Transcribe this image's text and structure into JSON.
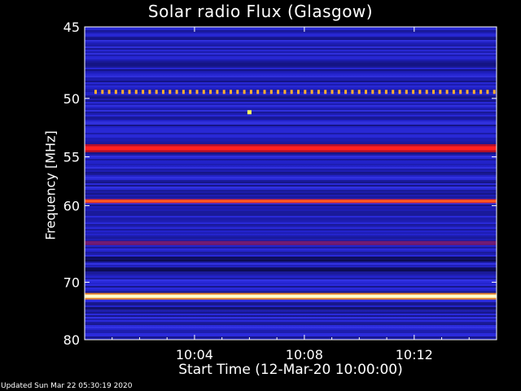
{
  "chart_data": {
    "type": "heatmap",
    "title": "Solar radio Flux (Glasgow)",
    "xlabel": "Start Time (12-Mar-20 10:00:00)",
    "ylabel": "Frequency [MHz]",
    "x_tick_labels": [
      "10:04",
      "10:08",
      "10:12"
    ],
    "x_ticks_minutes": [
      4,
      8,
      12
    ],
    "xlim_minutes": [
      0,
      15
    ],
    "y_ticks": [
      45,
      50,
      55,
      60,
      70,
      80
    ],
    "ylim": [
      45,
      80
    ],
    "y_scale": "reciprocal",
    "colormap": [
      "#000000",
      "#1a1aa6",
      "#3535e6",
      "#8a1a6a",
      "#ff1a1a",
      "#ffd040",
      "#ffffff"
    ],
    "bands": [
      {
        "freq_mhz": 49.5,
        "level": "dotted-yellow"
      },
      {
        "freq_mhz": 54.2,
        "level": "red"
      },
      {
        "freq_mhz": 59.5,
        "level": "red-orange"
      },
      {
        "freq_mhz": 64.5,
        "level": "purple"
      },
      {
        "freq_mhz": 72.2,
        "level": "white-yellow"
      }
    ],
    "hot_spot": {
      "time_minutes": 6.0,
      "freq_mhz": 51.1
    }
  },
  "footer": {
    "updated": "Updated Sun Mar 22 05:30:19 2020"
  }
}
